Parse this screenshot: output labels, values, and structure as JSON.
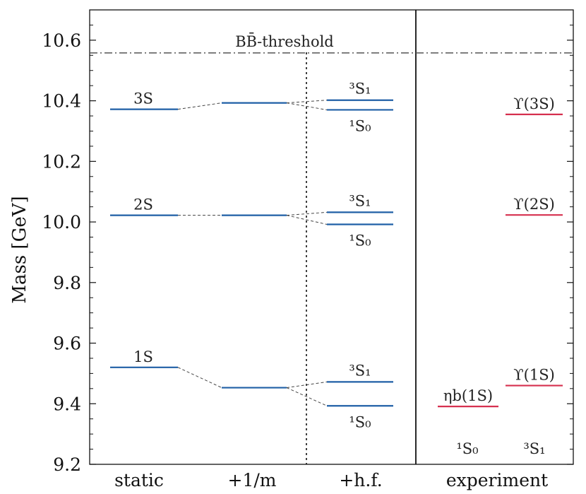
{
  "chart_data": {
    "type": "level-diagram",
    "ylabel": "Mass [GeV]",
    "ylim": [
      9.2,
      10.7
    ],
    "yticks": [
      "9.2",
      "9.4",
      "9.6",
      "9.8",
      "10.0",
      "10.2",
      "10.4",
      "10.6"
    ],
    "categories": [
      "static",
      "+1/m",
      "+h.f.",
      "experiment"
    ],
    "threshold": {
      "label": "BB̄-threshold",
      "value": 10.558
    },
    "experiment_columns": [
      "¹S₀",
      "³S₁"
    ],
    "levels": [
      {
        "column": "static",
        "label": "1S",
        "value": 9.52,
        "color": "#1f5fa6"
      },
      {
        "column": "static",
        "label": "2S",
        "value": 10.022,
        "color": "#1f5fa6"
      },
      {
        "column": "static",
        "label": "3S",
        "value": 10.372,
        "color": "#1f5fa6"
      },
      {
        "column": "+1/m",
        "label": "",
        "value": 9.453,
        "color": "#1f5fa6"
      },
      {
        "column": "+1/m",
        "label": "",
        "value": 10.022,
        "color": "#1f5fa6"
      },
      {
        "column": "+1/m",
        "label": "",
        "value": 10.393,
        "color": "#1f5fa6"
      },
      {
        "column": "+h.f.",
        "label": "³S₁",
        "value": 9.472,
        "color": "#1f5fa6"
      },
      {
        "column": "+h.f.",
        "label": "¹S₀",
        "value": 9.393,
        "color": "#1f5fa6"
      },
      {
        "column": "+h.f.",
        "label": "³S₁",
        "value": 10.032,
        "color": "#1f5fa6"
      },
      {
        "column": "+h.f.",
        "label": "¹S₀",
        "value": 9.992,
        "color": "#1f5fa6"
      },
      {
        "column": "+h.f.",
        "label": "³S₁",
        "value": 10.402,
        "color": "#1f5fa6"
      },
      {
        "column": "+h.f.",
        "label": "¹S₀",
        "value": 10.37,
        "color": "#1f5fa6"
      },
      {
        "column": "experiment-1S0",
        "label": "ηb(1S)",
        "value": 9.391,
        "color": "#d6304f"
      },
      {
        "column": "experiment-3S1",
        "label": "ϒ(1S)",
        "value": 9.46,
        "color": "#d6304f"
      },
      {
        "column": "experiment-3S1",
        "label": "ϒ(2S)",
        "value": 10.023,
        "color": "#d6304f"
      },
      {
        "column": "experiment-3S1",
        "label": "ϒ(3S)",
        "value": 10.355,
        "color": "#d6304f"
      }
    ],
    "connectors": [
      [
        0,
        3
      ],
      [
        1,
        4
      ],
      [
        2,
        5
      ],
      [
        3,
        6
      ],
      [
        3,
        7
      ],
      [
        4,
        8
      ],
      [
        4,
        9
      ],
      [
        5,
        10
      ],
      [
        5,
        11
      ]
    ]
  }
}
